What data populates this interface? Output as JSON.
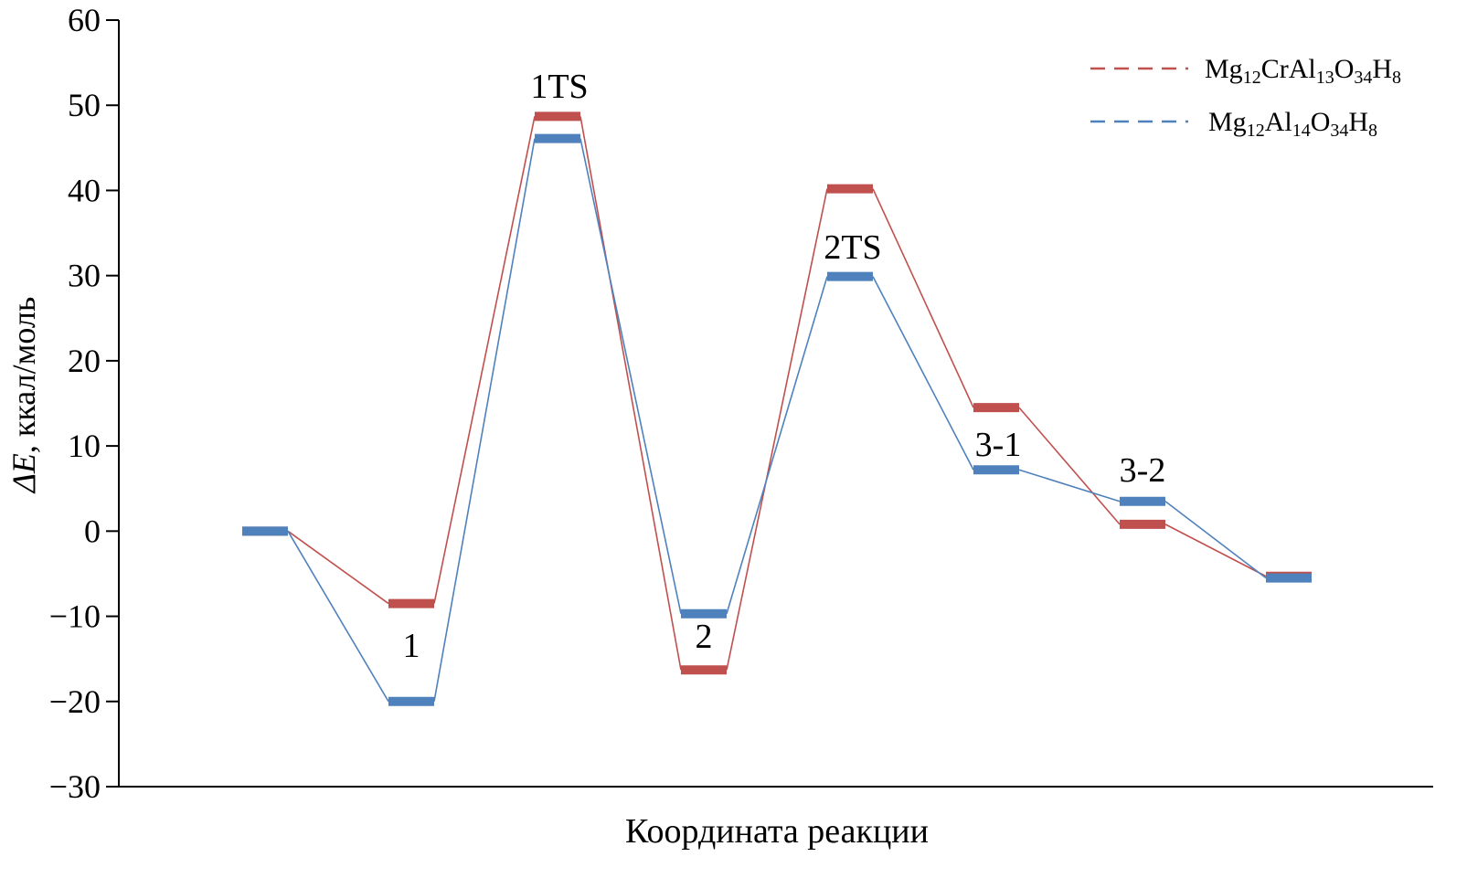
{
  "chart_data": {
    "type": "line",
    "title": "",
    "xlabel": "Координата реакции",
    "ylabel_prefix": "ΔE",
    "ylabel_suffix": ", ккал/моль",
    "ylim": [
      -30,
      60
    ],
    "yticks": [
      60,
      50,
      40,
      30,
      20,
      10,
      0,
      -10,
      -20,
      -30
    ],
    "ytick_labels": [
      "60",
      "50",
      "40",
      "30",
      "20",
      "10",
      "0",
      "−10",
      "−20",
      "−30"
    ],
    "grid": false,
    "legend_position": "top-right",
    "state_labels": [
      "",
      "1",
      "1TS",
      "2",
      "2TS",
      "3-1",
      "3-2",
      ""
    ],
    "series": [
      {
        "name": "Mg12CrAl13O34H8",
        "color": "#c0504d",
        "values": [
          0,
          -8.5,
          48.7,
          -16.3,
          40.2,
          14.5,
          0.8,
          -5.3
        ]
      },
      {
        "name": "Mg12Al14O34H8",
        "color": "#4f81bd",
        "values": [
          0,
          -20.0,
          46.1,
          -9.7,
          29.9,
          7.2,
          3.5,
          -5.5
        ]
      }
    ]
  }
}
